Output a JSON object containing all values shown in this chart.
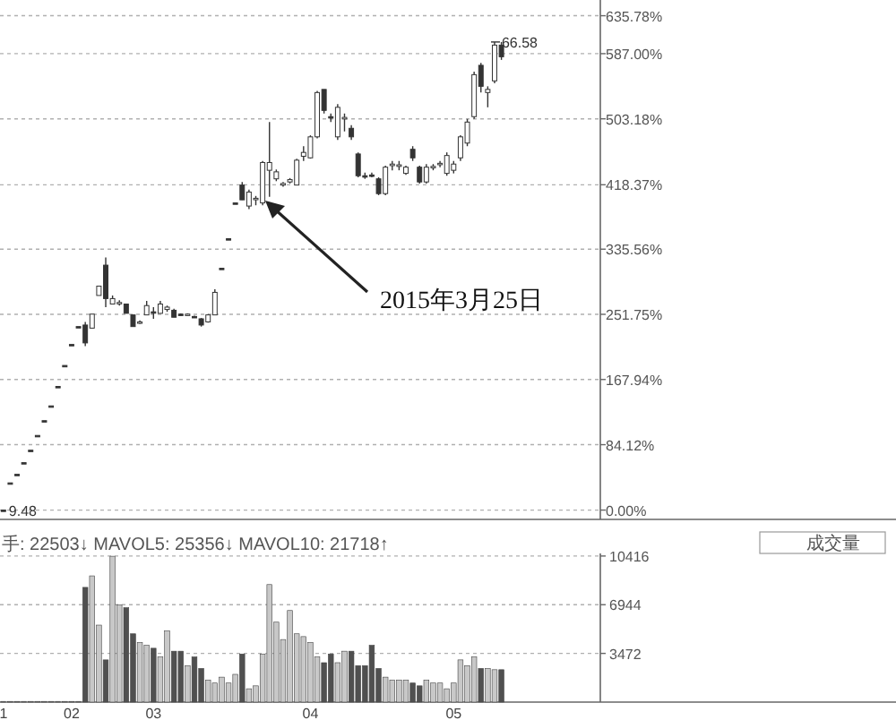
{
  "chart_data": [
    {
      "type": "candlestick",
      "color": "#333333",
      "grid": "y",
      "categories": [
        null,
        null,
        null,
        null,
        null,
        null,
        null,
        null,
        null,
        null,
        null,
        null,
        null,
        null,
        null,
        null,
        null,
        null,
        null,
        null,
        null,
        null,
        null,
        null,
        null,
        null,
        null,
        null,
        null,
        null,
        null,
        null,
        null,
        null,
        null,
        null,
        null,
        null,
        null,
        null,
        null,
        null,
        null,
        null,
        null,
        null,
        null,
        null,
        null,
        null,
        null,
        null,
        null,
        null,
        null,
        null,
        null,
        null,
        null,
        null,
        null,
        null,
        null,
        null,
        null,
        null,
        null,
        null,
        null,
        null,
        null,
        null,
        null,
        null,
        null,
        null,
        null,
        null,
        null,
        null,
        null,
        null,
        null,
        null,
        null,
        null,
        null,
        null
      ],
      "ohlc": [
        [
          0,
          0,
          0,
          0
        ],
        [
          35,
          35,
          35,
          35
        ],
        [
          46,
          46,
          46,
          46
        ],
        [
          61,
          61,
          61,
          61
        ],
        [
          77,
          77,
          77,
          77
        ],
        [
          96,
          96,
          96,
          96
        ],
        [
          115,
          115,
          115,
          115
        ],
        [
          134,
          134,
          134,
          134
        ],
        [
          159,
          159,
          159,
          159
        ],
        [
          186,
          186,
          186,
          186
        ],
        [
          213,
          213,
          213,
          213
        ],
        [
          236,
          236,
          236,
          236
        ],
        [
          238,
          242,
          211,
          215
        ],
        [
          234,
          252,
          234,
          252
        ],
        [
          276,
          288,
          276,
          288
        ],
        [
          315,
          325,
          261,
          272
        ],
        [
          265,
          276,
          265,
          272
        ],
        [
          266,
          270,
          263,
          267
        ],
        [
          265,
          265,
          253,
          253
        ],
        [
          251,
          251,
          236,
          236
        ],
        [
          241,
          244,
          239,
          242
        ],
        [
          251,
          269,
          251,
          263
        ],
        [
          255,
          261,
          246,
          254
        ],
        [
          253,
          269,
          253,
          265
        ],
        [
          258,
          263,
          255,
          261
        ],
        [
          257,
          259,
          248,
          248
        ],
        [
          252,
          253,
          250,
          251
        ],
        [
          251,
          253,
          250,
          252
        ],
        [
          249,
          250,
          247,
          248
        ],
        [
          246,
          247,
          236,
          238
        ],
        [
          242,
          252,
          241,
          251
        ],
        [
          251,
          284,
          251,
          280
        ],
        [
          311,
          311,
          311,
          311
        ],
        [
          349,
          349,
          349,
          349
        ],
        [
          395,
          395,
          395,
          395
        ],
        [
          418,
          422,
          399,
          399
        ],
        [
          391,
          412,
          387,
          409
        ],
        [
          400,
          404,
          392,
          401
        ],
        [
          395,
          449,
          392,
          447
        ],
        [
          437,
          499,
          403,
          447
        ],
        [
          426,
          438,
          423,
          435
        ],
        [
          418,
          422,
          416,
          420
        ],
        [
          422,
          427,
          420,
          425
        ],
        [
          418,
          452,
          418,
          450
        ],
        [
          455,
          468,
          449,
          460
        ],
        [
          453,
          482,
          452,
          480
        ],
        [
          480,
          539,
          478,
          537
        ],
        [
          541,
          541,
          510,
          514
        ],
        [
          506,
          510,
          499,
          505
        ],
        [
          480,
          522,
          476,
          518
        ],
        [
          503,
          510,
          487,
          505
        ],
        [
          491,
          495,
          476,
          480
        ],
        [
          458,
          460,
          428,
          430
        ],
        [
          430,
          434,
          426,
          429
        ],
        [
          431,
          434,
          428,
          430
        ],
        [
          426,
          428,
          405,
          407
        ],
        [
          407,
          443,
          405,
          441
        ],
        [
          443,
          449,
          437,
          445
        ],
        [
          442,
          449,
          437,
          444
        ],
        [
          433,
          443,
          431,
          441
        ],
        [
          464,
          468,
          449,
          453
        ],
        [
          441,
          443,
          420,
          422
        ],
        [
          422,
          445,
          420,
          441
        ],
        [
          441,
          445,
          437,
          442
        ],
        [
          445,
          449,
          441,
          446
        ],
        [
          433,
          460,
          430,
          456
        ],
        [
          437,
          449,
          433,
          445
        ],
        [
          453,
          482,
          449,
          480
        ],
        [
          472,
          503,
          468,
          499
        ],
        [
          506,
          564,
          503,
          560
        ],
        [
          572,
          575,
          537,
          545
        ],
        [
          537,
          545,
          518,
          541
        ],
        [
          552,
          602,
          549,
          598
        ],
        [
          598,
          602,
          579,
          583
        ],
        null,
        null,
        null,
        null,
        null,
        null,
        null,
        null,
        null,
        null,
        null,
        null,
        null,
        null
      ],
      "ylim": [
        -12,
        656
      ],
      "yticks": [
        {
          "value": 0,
          "label": "0.00%"
        },
        {
          "value": 84.12,
          "label": "84.12%"
        },
        {
          "value": 167.94,
          "label": "167.94%"
        },
        {
          "value": 251.75,
          "label": "251.75%"
        },
        {
          "value": 335.56,
          "label": "335.56%"
        },
        {
          "value": 418.37,
          "label": "418.37%"
        },
        {
          "value": 503.18,
          "label": "503.18%"
        },
        {
          "value": 587,
          "label": "587.00%"
        },
        {
          "value": 635.78,
          "label": "635.78%"
        }
      ],
      "annotations": [
        "2015年3月25日",
        "66.58",
        "9.48"
      ]
    },
    {
      "type": "bar",
      "grid": "y",
      "categories": [
        "1",
        null,
        null,
        null,
        null,
        null,
        null,
        null,
        null,
        null,
        "02",
        null,
        null,
        null,
        null,
        null,
        null,
        null,
        null,
        null,
        null,
        null,
        "03",
        null,
        null,
        null,
        null,
        null,
        null,
        null,
        null,
        null,
        null,
        null,
        null,
        null,
        null,
        null,
        null,
        null,
        null,
        null,
        null,
        null,
        null,
        "04",
        null,
        null,
        null,
        null,
        null,
        null,
        null,
        null,
        null,
        null,
        null,
        null,
        null,
        null,
        null,
        null,
        null,
        null,
        null,
        null,
        "05",
        null,
        null,
        null,
        null,
        null,
        null,
        null,
        null,
        null,
        null,
        null,
        null,
        null,
        null,
        null,
        null,
        null,
        null,
        null,
        null,
        null
      ],
      "values": [
        50,
        50,
        50,
        50,
        50,
        50,
        50,
        50,
        50,
        50,
        50,
        50,
        8180,
        9000,
        5490,
        3010,
        10400,
        6940,
        6730,
        4870,
        4250,
        4050,
        3840,
        3220,
        5080,
        3630,
        3630,
        2600,
        3220,
        2400,
        1570,
        1360,
        1780,
        1360,
        1980,
        3430,
        950,
        1160,
        3430,
        8380,
        5700,
        4460,
        6530,
        4870,
        4670,
        4250,
        3220,
        2810,
        3430,
        2810,
        3630,
        3630,
        2600,
        2600,
        4050,
        2400,
        1780,
        1570,
        1570,
        1570,
        1360,
        1160,
        1570,
        1360,
        1360,
        950,
        1360,
        3010,
        2600,
        3220,
        2400,
        2400,
        2310,
        2310,
        null,
        null,
        null,
        null,
        null,
        null,
        null,
        null,
        null,
        null,
        null,
        null,
        null,
        null
      ],
      "colors": [
        "#c8c8c8",
        "#c8c8c8",
        "#c8c8c8",
        "#c8c8c8",
        "#c8c8c8",
        "#c8c8c8",
        "#c8c8c8",
        "#c8c8c8",
        "#c8c8c8",
        "#c8c8c8",
        "#c8c8c8",
        "#c8c8c8",
        "#505050",
        "#c8c8c8",
        "#c8c8c8",
        "#505050",
        "#c8c8c8",
        "#c8c8c8",
        "#505050",
        "#505050",
        "#c8c8c8",
        "#c8c8c8",
        "#505050",
        "#c8c8c8",
        "#c8c8c8",
        "#505050",
        "#505050",
        "#c8c8c8",
        "#505050",
        "#505050",
        "#c8c8c8",
        "#c8c8c8",
        "#c8c8c8",
        "#c8c8c8",
        "#c8c8c8",
        "#505050",
        "#c8c8c8",
        "#c8c8c8",
        "#c8c8c8",
        "#c8c8c8",
        "#c8c8c8",
        "#c8c8c8",
        "#c8c8c8",
        "#c8c8c8",
        "#c8c8c8",
        "#c8c8c8",
        "#c8c8c8",
        "#505050",
        "#505050",
        "#c8c8c8",
        "#c8c8c8",
        "#505050",
        "#505050",
        "#505050",
        "#505050",
        "#505050",
        "#c8c8c8",
        "#c8c8c8",
        "#c8c8c8",
        "#c8c8c8",
        "#505050",
        "#505050",
        "#c8c8c8",
        "#c8c8c8",
        "#c8c8c8",
        "#c8c8c8",
        "#c8c8c8",
        "#c8c8c8",
        "#c8c8c8",
        "#c8c8c8",
        "#505050",
        "#c8c8c8",
        "#c8c8c8",
        "#505050",
        null,
        null,
        null,
        null,
        null,
        null,
        null,
        null,
        null,
        null,
        null,
        null,
        null,
        null
      ],
      "ylim": [
        0,
        10600
      ],
      "yticks": [
        3472,
        6944,
        10416
      ],
      "annotations": [
        "手: 22503↓  MAVOL5: 25356↓  MAVOL10: 21718↑",
        "成交量"
      ]
    }
  ]
}
